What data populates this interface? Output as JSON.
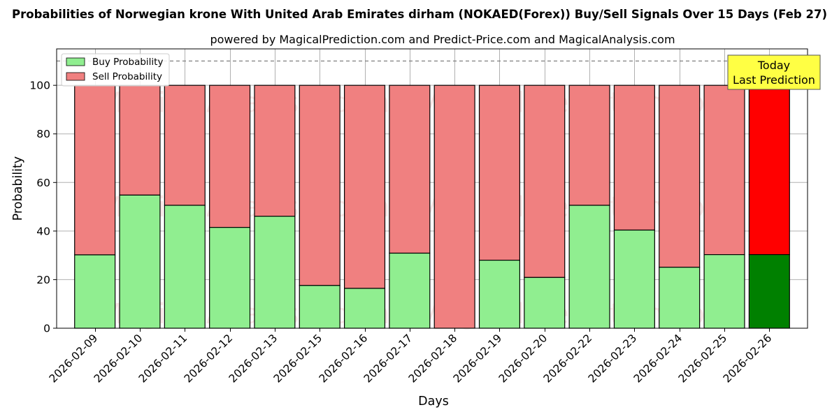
{
  "chart_data": {
    "type": "bar",
    "stacked": true,
    "title": "Probabilities of Norwegian krone With United Arab Emirates dirham (NOKAED(Forex)) Buy/Sell Signals Over 15 Days (Feb 27)",
    "subtitle": "powered by MagicalPrediction.com and Predict-Price.com and MagicalAnalysis.com",
    "xlabel": "Days",
    "ylabel": "Probability",
    "ylim": [
      0,
      115
    ],
    "yticks": [
      0,
      20,
      40,
      60,
      80,
      100
    ],
    "grid": true,
    "legend_position": "top-left",
    "reference_line": 110,
    "categories": [
      "2026-02-09",
      "2026-02-10",
      "2026-02-11",
      "2026-02-12",
      "2026-02-13",
      "2026-02-15",
      "2026-02-16",
      "2026-02-17",
      "2026-02-18",
      "2026-02-19",
      "2026-02-20",
      "2026-02-22",
      "2026-02-23",
      "2026-02-24",
      "2026-02-25",
      "2026-02-26"
    ],
    "series": [
      {
        "name": "Buy Probability",
        "color": "#90ee90",
        "values": [
          30.2,
          54.8,
          50.6,
          41.5,
          46.1,
          17.6,
          16.4,
          30.9,
          0,
          28.0,
          20.9,
          50.6,
          40.4,
          25.1,
          30.3,
          30.3
        ]
      },
      {
        "name": "Sell Probability",
        "color": "#f08080",
        "values": [
          69.8,
          45.2,
          49.4,
          58.5,
          53.9,
          82.4,
          83.6,
          69.1,
          100,
          72.0,
          79.1,
          49.4,
          59.6,
          74.9,
          69.7,
          69.7
        ]
      }
    ],
    "highlight": {
      "index": 15,
      "buy_color": "#008000",
      "sell_color": "#ff0000"
    },
    "annotation": {
      "lines": [
        "Today",
        "Last Prediction"
      ],
      "background": "#ffff44"
    },
    "watermark": [
      "MagicalAnalysis.com",
      "MagicalPrediction.com"
    ]
  }
}
